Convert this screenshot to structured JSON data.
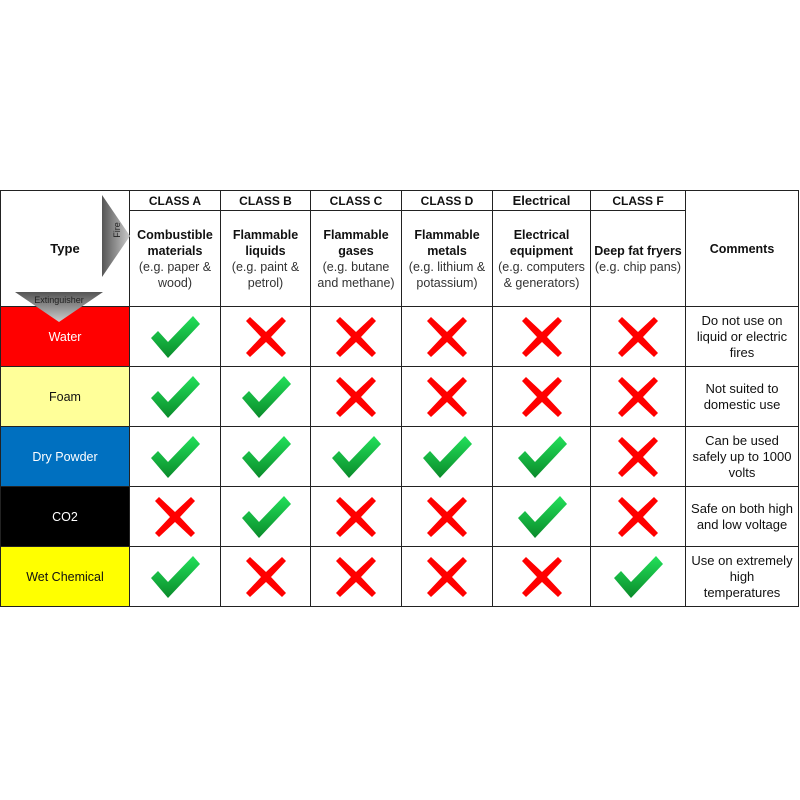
{
  "header": {
    "type_label": "Type",
    "fire_label": "Fire",
    "extinguisher_label": "Extinguisher",
    "comments_label": "Comments",
    "classes": [
      {
        "class": "CLASS A",
        "title": "Combustible materials",
        "example": "(e.g. paper & wood)"
      },
      {
        "class": "CLASS B",
        "title": "Flammable liquids",
        "example": "(e.g. paint & petrol)"
      },
      {
        "class": "CLASS C",
        "title": "Flammable gases",
        "example": "(e.g. butane and methane)"
      },
      {
        "class": "CLASS D",
        "title": "Flammable metals",
        "example": "(e.g. lithium & potassium)"
      },
      {
        "class": "Electrical",
        "title": "Electrical equipment",
        "example": "(e.g. computers & generators)"
      },
      {
        "class": "CLASS F",
        "title": "Deep fat fryers",
        "example": "(e.g. chip pans)"
      }
    ]
  },
  "icons": {
    "yes": "green-check-icon",
    "no": "red-cross-icon"
  },
  "colors": {
    "check": "#11b83a",
    "cross": "#ff0000"
  },
  "rows": [
    {
      "name": "Water",
      "bg": "#ff0000",
      "fg": "#ffffff",
      "marks": [
        "yes",
        "no",
        "no",
        "no",
        "no",
        "no"
      ],
      "comment": "Do not use on liquid or electric fires"
    },
    {
      "name": "Foam",
      "bg": "#ffff99",
      "fg": "#111111",
      "marks": [
        "yes",
        "yes",
        "no",
        "no",
        "no",
        "no"
      ],
      "comment": "Not suited to domestic use"
    },
    {
      "name": "Dry Powder",
      "bg": "#0070c0",
      "fg": "#ffffff",
      "marks": [
        "yes",
        "yes",
        "yes",
        "yes",
        "yes",
        "no"
      ],
      "comment": "Can be used safely up to 1000 volts"
    },
    {
      "name": "CO2",
      "bg": "#000000",
      "fg": "#ffffff",
      "marks": [
        "no",
        "yes",
        "no",
        "no",
        "yes",
        "no"
      ],
      "comment": "Safe on both high and low voltage"
    },
    {
      "name": "Wet Chemical",
      "bg": "#ffff00",
      "fg": "#111111",
      "marks": [
        "yes",
        "no",
        "no",
        "no",
        "no",
        "yes"
      ],
      "comment": "Use on extremely high temperatures"
    }
  ]
}
